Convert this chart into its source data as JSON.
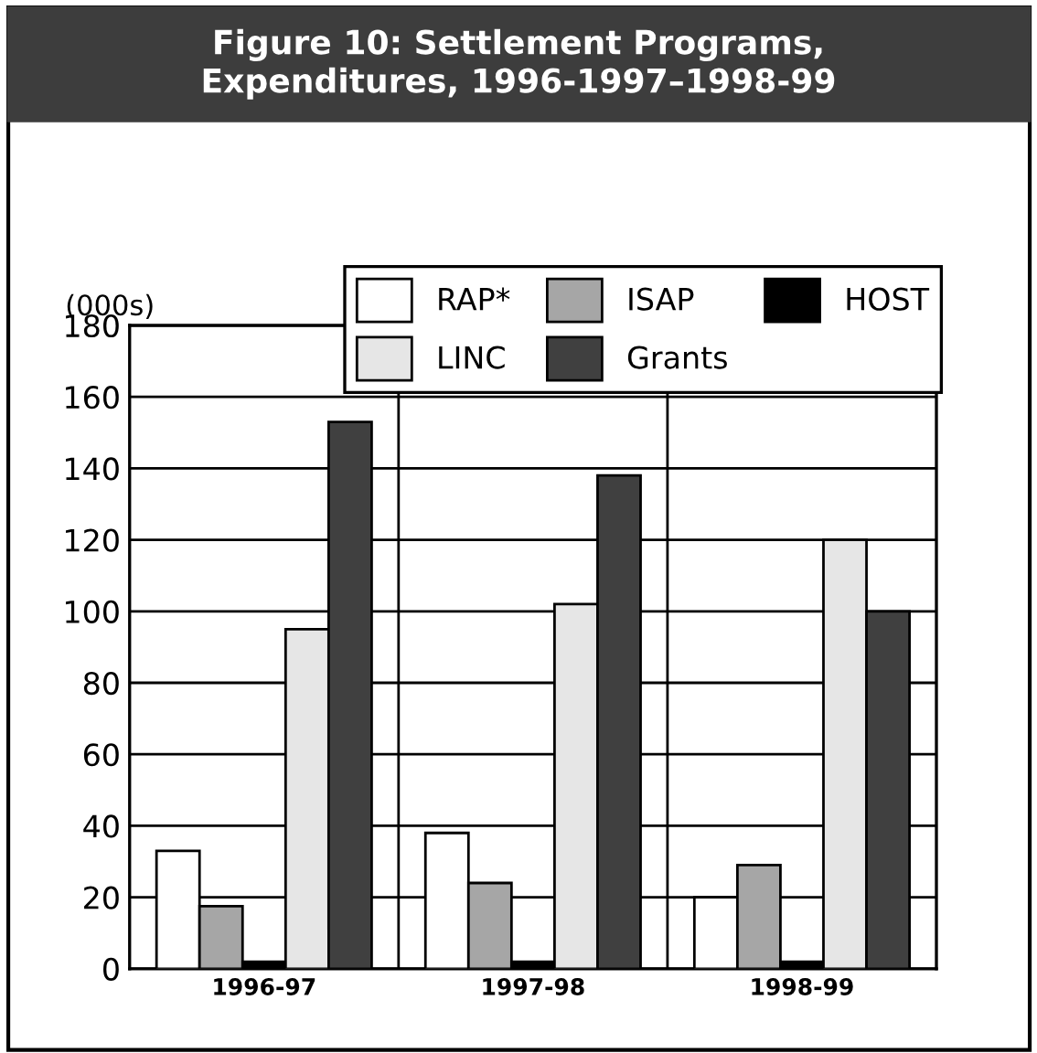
{
  "chart_data": {
    "type": "bar",
    "title": "Figure 10: Settlement Programs,\nExpenditures, 1996-1997–1998-99",
    "ylabel": "(000s)",
    "categories": [
      "1996-97",
      "1997-98",
      "1998-99"
    ],
    "series": [
      {
        "name": "RAP*",
        "color": "#ffffff",
        "values": [
          33,
          38,
          20
        ]
      },
      {
        "name": "ISAP",
        "color": "#a6a6a6",
        "values": [
          17.5,
          24,
          29
        ]
      },
      {
        "name": "HOST",
        "color": "#000000",
        "values": [
          2,
          2,
          2
        ]
      },
      {
        "name": "LINC",
        "color": "#e6e6e6",
        "values": [
          95,
          102,
          120
        ]
      },
      {
        "name": "Grants",
        "color": "#404040",
        "values": [
          153,
          138,
          100
        ]
      }
    ],
    "ylim": [
      0,
      180
    ],
    "yticks": [
      0,
      20,
      40,
      60,
      80,
      100,
      120,
      140,
      160,
      180
    ],
    "grid": true,
    "legend": "top right"
  }
}
